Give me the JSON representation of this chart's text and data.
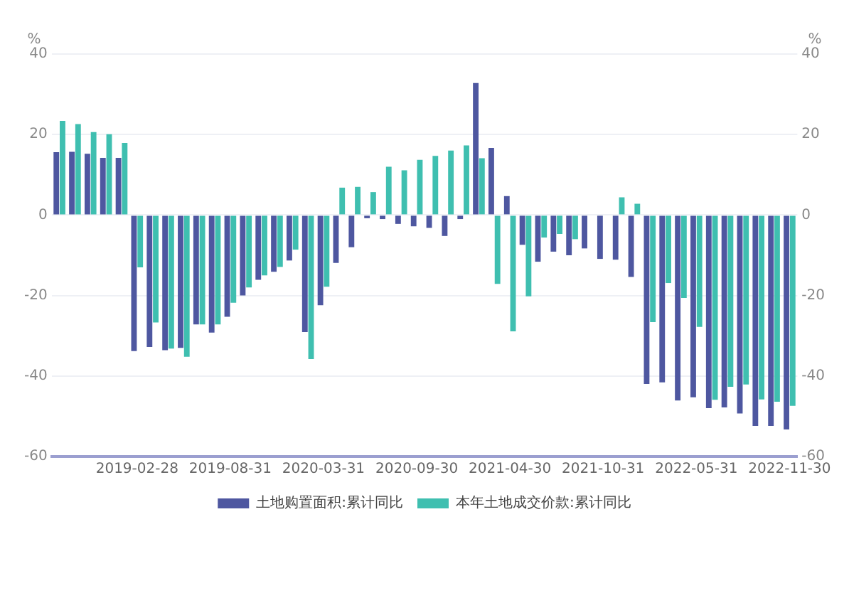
{
  "chart_data": {
    "type": "bar",
    "ylabel": "%",
    "y2label": "%",
    "categories": [
      null,
      null,
      null,
      null,
      null,
      "2019-02-28",
      null,
      null,
      null,
      null,
      null,
      "2019-08-31",
      null,
      null,
      null,
      null,
      null,
      "2020-03-31",
      null,
      null,
      null,
      null,
      null,
      "2020-09-30",
      null,
      null,
      null,
      null,
      null,
      "2021-04-30",
      null,
      null,
      null,
      null,
      null,
      "2021-10-31",
      null,
      null,
      null,
      null,
      null,
      "2022-05-31",
      null,
      null,
      null,
      null,
      null,
      "2022-11-30"
    ],
    "series": [
      {
        "name": "土地购置面积:累计同比",
        "color": "#4e57a0",
        "values": [
          15.6,
          15.7,
          15.2,
          14.2,
          14.2,
          -33.8,
          -32.8,
          -33.6,
          -33,
          -27.2,
          -29.2,
          -25.3,
          -20,
          -16.1,
          -14.1,
          -11.3,
          -29.1,
          -22.4,
          -11.9,
          -8,
          -0.8,
          -1,
          -2.2,
          -2.8,
          -3.2,
          -5.2,
          -1,
          32.8,
          16.7,
          4.7,
          -7.4,
          -11.6,
          -9.1,
          -10,
          -8.3,
          -10.9,
          -11.1,
          -15.4,
          -42,
          -41.6,
          -46.1,
          -45.3,
          -48,
          -47.8,
          -49.3,
          -52.4,
          -52.4,
          -53.3
        ]
      },
      {
        "name": "本年土地成交价款:累计同比",
        "color": "#3fbfb0",
        "values": [
          23.4,
          22.6,
          20.6,
          20.1,
          17.9,
          -13,
          -26.7,
          -33.2,
          -35.2,
          -27.2,
          -27.2,
          -21.8,
          -18,
          -15,
          -12.9,
          -8.6,
          -35.8,
          -17.8,
          6.8,
          7,
          5.7,
          12,
          11.1,
          13.7,
          14.7,
          16,
          17.3,
          14.1,
          -17.1,
          -28.9,
          -20.2,
          -5.6,
          -4.7,
          -6,
          null,
          null,
          4.4,
          2.8,
          -26.6,
          -16.9,
          -20.6,
          -27.8,
          -45.9,
          -42.7,
          -42.1,
          -45.8,
          -46.4,
          -47.4
        ]
      }
    ],
    "ylim": [
      -60,
      40
    ],
    "yticks": [
      -60,
      -40,
      -20,
      0,
      20,
      40
    ],
    "y2lim": [
      -60,
      40
    ],
    "y2ticks": [
      -60,
      -40,
      -20,
      0,
      20,
      40
    ],
    "grid": "y",
    "legend": "bottom"
  }
}
